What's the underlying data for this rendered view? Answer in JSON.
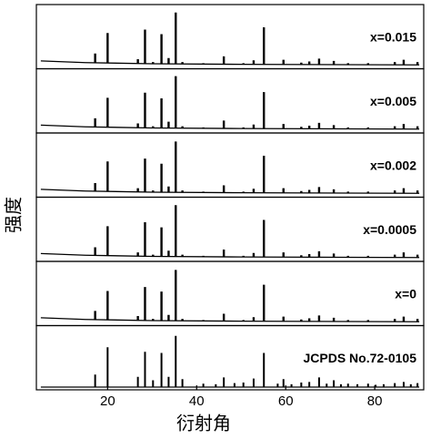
{
  "chart_data": {
    "type": "xrd-stack",
    "xlabel": "衍射角",
    "ylabel": "强度",
    "xlim": [
      4,
      91
    ],
    "xticks": [
      20,
      40,
      60,
      80
    ],
    "ylim": [
      0,
      100
    ],
    "color": "#000000",
    "panels": [
      {
        "name": "x=0.015",
        "x": [
          17.2,
          20.0,
          26.8,
          28.4,
          30.2,
          32.1,
          33.7,
          35.3,
          36.8,
          41.5,
          46.1,
          50.5,
          52.8,
          55.1,
          59.5,
          63.5,
          65.3,
          67.5,
          70.8,
          74.0,
          78.5,
          84.5,
          86.5,
          89.6
        ],
        "values": [
          22,
          58,
          12,
          64,
          7,
          56,
          14,
          94,
          7,
          5,
          17,
          5,
          10,
          68,
          11,
          6,
          8,
          13,
          9,
          5,
          5,
          7,
          11,
          7
        ],
        "background_x": [
          5,
          15,
          30,
          50,
          90
        ],
        "background": [
          9,
          6,
          4,
          3,
          2
        ]
      },
      {
        "name": "x=0.005",
        "x": [
          17.2,
          20.0,
          26.8,
          28.4,
          30.2,
          32.1,
          33.7,
          35.3,
          36.8,
          41.5,
          46.1,
          50.5,
          52.8,
          55.1,
          59.5,
          63.5,
          65.3,
          67.5,
          70.8,
          74.0,
          78.5,
          84.5,
          86.5,
          89.6
        ],
        "values": [
          21,
          57,
          12,
          66,
          7,
          56,
          15,
          95,
          7,
          5,
          17,
          5,
          10,
          67,
          11,
          6,
          8,
          13,
          9,
          5,
          5,
          7,
          11,
          7
        ],
        "background_x": [
          5,
          15,
          30,
          50,
          90
        ],
        "background": [
          9,
          6,
          4,
          3,
          2
        ]
      },
      {
        "name": "x=0.002",
        "x": [
          17.2,
          20.0,
          26.8,
          28.4,
          30.2,
          32.1,
          33.7,
          35.3,
          36.8,
          41.5,
          46.1,
          50.5,
          52.8,
          55.1,
          59.5,
          63.5,
          65.3,
          67.5,
          70.8,
          74.0,
          78.5,
          84.5,
          86.5,
          89.6
        ],
        "values": [
          20,
          58,
          11,
          63,
          7,
          54,
          14,
          93,
          7,
          5,
          16,
          5,
          10,
          68,
          11,
          6,
          8,
          13,
          9,
          5,
          5,
          7,
          11,
          7
        ],
        "background_x": [
          5,
          15,
          30,
          50,
          90
        ],
        "background": [
          9,
          6,
          4,
          3,
          2
        ]
      },
      {
        "name": "x=0.0005",
        "x": [
          17.2,
          20.0,
          26.8,
          28.4,
          30.2,
          32.1,
          33.7,
          35.3,
          36.8,
          41.5,
          46.1,
          50.5,
          52.8,
          55.1,
          59.5,
          63.5,
          65.3,
          67.5,
          70.8,
          74.0,
          78.5,
          84.5,
          86.5,
          89.6
        ],
        "values": [
          20,
          57,
          11,
          64,
          7,
          55,
          14,
          94,
          7,
          5,
          16,
          5,
          10,
          68,
          11,
          6,
          8,
          13,
          9,
          5,
          5,
          7,
          11,
          7
        ],
        "background_x": [
          5,
          15,
          30,
          50,
          90
        ],
        "background": [
          9,
          6,
          4,
          3,
          2
        ]
      },
      {
        "name": "x=0",
        "x": [
          17.2,
          20.0,
          26.8,
          28.4,
          30.2,
          32.1,
          33.7,
          35.3,
          36.8,
          41.5,
          46.1,
          50.5,
          52.8,
          55.1,
          59.5,
          63.5,
          65.3,
          67.5,
          70.8,
          74.0,
          78.5,
          84.5,
          86.5,
          89.6
        ],
        "values": [
          21,
          56,
          12,
          63,
          7,
          55,
          14,
          93,
          7,
          5,
          16,
          5,
          10,
          67,
          11,
          6,
          8,
          13,
          9,
          5,
          5,
          7,
          11,
          7
        ],
        "background_x": [
          5,
          15,
          30,
          50,
          90
        ],
        "background": [
          9,
          6,
          4,
          3,
          2
        ]
      },
      {
        "name": "JCPDS No.72-0105",
        "x": [
          17.2,
          20.0,
          26.8,
          28.4,
          30.2,
          32.1,
          33.7,
          35.3,
          36.8,
          41.5,
          44.3,
          46.1,
          48.5,
          50.5,
          52.8,
          55.1,
          58.2,
          59.5,
          61.3,
          63.5,
          65.3,
          67.5,
          69.2,
          70.8,
          72.4,
          74.0,
          76.1,
          78.5,
          80.2,
          82.0,
          84.5,
          86.5,
          88.1,
          89.6
        ],
        "values": [
          22,
          70,
          18,
          62,
          12,
          60,
          18,
          90,
          14,
          6,
          5,
          17,
          7,
          8,
          15,
          60,
          6,
          14,
          5,
          8,
          9,
          17,
          6,
          12,
          5,
          6,
          5,
          6,
          4,
          5,
          7,
          9,
          5,
          7
        ],
        "background_x": [
          5,
          90
        ],
        "background": [
          0,
          0
        ]
      }
    ]
  }
}
